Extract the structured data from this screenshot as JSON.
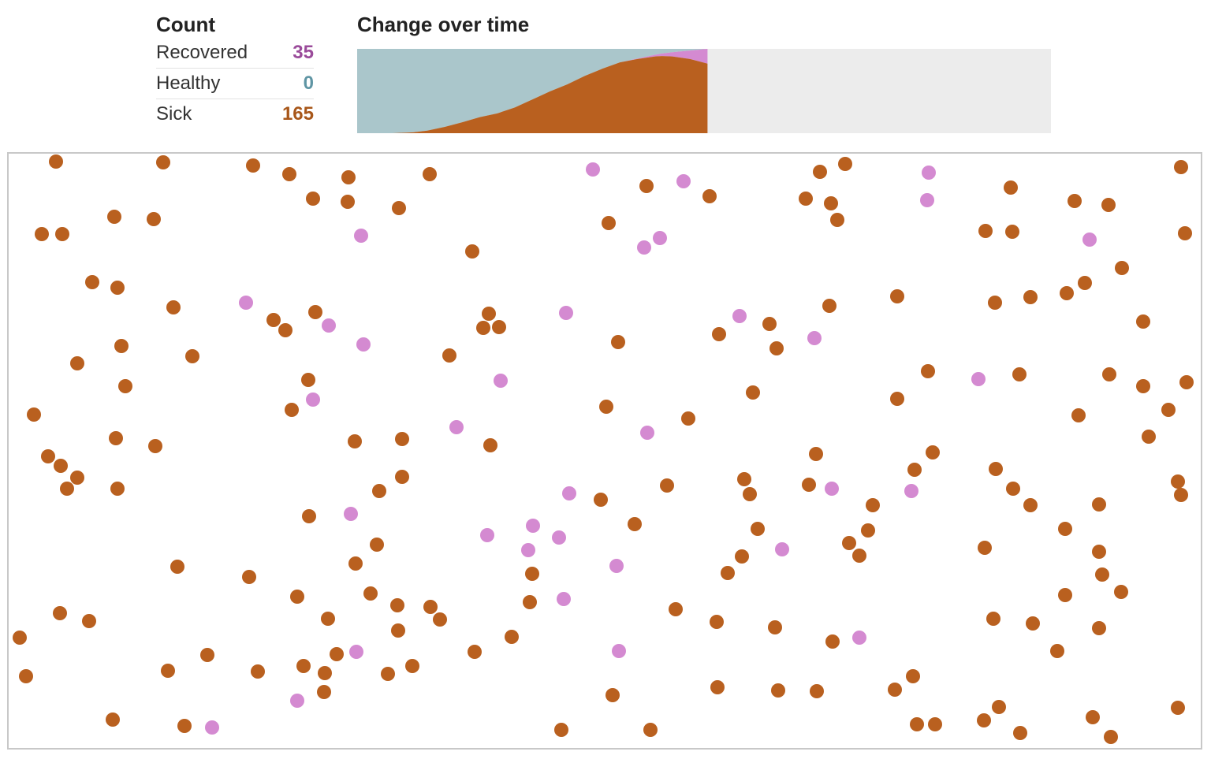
{
  "count_panel": {
    "title": "Count",
    "rows": [
      {
        "label": "Recovered",
        "value": "35",
        "color": "#9a4b9a"
      },
      {
        "label": "Healthy",
        "value": "0",
        "color": "#5f95a4"
      },
      {
        "label": "Sick",
        "value": "165",
        "color": "#a8571a"
      }
    ]
  },
  "change_panel": {
    "title": "Change over time"
  },
  "colors": {
    "sick": "#b9601f",
    "healthy": "#aac6cb",
    "recovered": "#d48ad1",
    "chart_empty": "#ececec",
    "border": "#c8c8c8"
  },
  "chart_data": [
    {
      "type": "area",
      "title": "Change over time",
      "progress_fraction": 0.505,
      "total": 200,
      "stacking": [
        "sick",
        "healthy",
        "recovered"
      ],
      "x": [
        0,
        5,
        10,
        13,
        16,
        20,
        25,
        30,
        35,
        40,
        45,
        50,
        55,
        60,
        65,
        70,
        75,
        80,
        85,
        87,
        90,
        95,
        100
      ],
      "series": [
        {
          "name": "Sick",
          "color": "#b9601f",
          "values": [
            0,
            0,
            0,
            1,
            2,
            6,
            15,
            26,
            38,
            47,
            61,
            80,
            99,
            116,
            136,
            153,
            168,
            176,
            182,
            183,
            182,
            176,
            165
          ]
        },
        {
          "name": "Recovered",
          "color": "#d48ad1",
          "values": [
            0,
            0,
            0,
            0,
            0,
            0,
            0,
            0,
            0,
            0,
            0,
            0,
            0,
            0,
            0,
            0,
            0,
            1,
            4,
            6,
            10,
            20,
            35
          ]
        },
        {
          "name": "Healthy",
          "color": "#aac6cb",
          "values": [
            200,
            200,
            200,
            199,
            198,
            194,
            185,
            174,
            162,
            153,
            139,
            120,
            101,
            84,
            64,
            47,
            32,
            23,
            14,
            11,
            8,
            4,
            0
          ]
        }
      ]
    },
    {
      "type": "scatter",
      "description_of_points": "simulation population",
      "xlim": [
        0,
        1516
      ],
      "ylim": [
        0,
        758
      ],
      "series": [
        {
          "name": "Sick",
          "color": "#b9601f",
          "points": [
            [
              62,
              12
            ],
            [
              198,
              13
            ],
            [
              312,
              17
            ],
            [
              358,
              28
            ],
            [
              433,
              32
            ],
            [
              536,
              28
            ],
            [
              388,
              59
            ],
            [
              432,
              63
            ],
            [
              497,
              71
            ],
            [
              1031,
              25
            ],
            [
              1063,
              15
            ],
            [
              1273,
              45
            ],
            [
              1489,
              19
            ],
            [
              136,
              82
            ],
            [
              186,
              85
            ],
            [
              44,
              104
            ],
            [
              70,
              104
            ],
            [
              811,
              43
            ],
            [
              891,
              56
            ],
            [
              1013,
              59
            ],
            [
              1045,
              65
            ],
            [
              1053,
              86
            ],
            [
              763,
              90
            ],
            [
              1354,
              62
            ],
            [
              1397,
              67
            ],
            [
              590,
              126
            ],
            [
              1241,
              100
            ],
            [
              1275,
              101
            ],
            [
              108,
              165
            ],
            [
              140,
              172
            ],
            [
              211,
              197
            ],
            [
              338,
              213
            ],
            [
              353,
              226
            ],
            [
              391,
              203
            ],
            [
              611,
              205
            ],
            [
              604,
              223
            ],
            [
              624,
              222
            ],
            [
              1043,
              195
            ],
            [
              1129,
              183
            ],
            [
              1253,
              191
            ],
            [
              1298,
              184
            ],
            [
              1344,
              179
            ],
            [
              1367,
              166
            ],
            [
              1414,
              147
            ],
            [
              1494,
              103
            ],
            [
              145,
              246
            ],
            [
              235,
              259
            ],
            [
              89,
              268
            ],
            [
              150,
              297
            ],
            [
              561,
              258
            ],
            [
              775,
              241
            ],
            [
              903,
              231
            ],
            [
              967,
              218
            ],
            [
              976,
              249
            ],
            [
              1441,
              215
            ],
            [
              382,
              289
            ],
            [
              1168,
              278
            ],
            [
              1284,
              282
            ],
            [
              1398,
              282
            ],
            [
              1496,
              292
            ],
            [
              1441,
              297
            ],
            [
              1473,
              327
            ],
            [
              34,
              333
            ],
            [
              361,
              327
            ],
            [
              946,
              305
            ],
            [
              760,
              323
            ],
            [
              864,
              338
            ],
            [
              1129,
              313
            ],
            [
              1359,
              334
            ],
            [
              138,
              363
            ],
            [
              188,
              373
            ],
            [
              441,
              367
            ],
            [
              501,
              364
            ],
            [
              613,
              372
            ],
            [
              1448,
              361
            ],
            [
              52,
              386
            ],
            [
              68,
              398
            ],
            [
              89,
              413
            ],
            [
              76,
              427
            ],
            [
              140,
              427
            ],
            [
              472,
              430
            ],
            [
              501,
              412
            ],
            [
              1026,
              383
            ],
            [
              1174,
              381
            ],
            [
              1151,
              403
            ],
            [
              1254,
              402
            ],
            [
              1276,
              427
            ],
            [
              1298,
              448
            ],
            [
              1385,
              447
            ],
            [
              935,
              415
            ],
            [
              942,
              434
            ],
            [
              1017,
              422
            ],
            [
              1098,
              448
            ],
            [
              1485,
              418
            ],
            [
              1489,
              435
            ],
            [
              837,
              423
            ],
            [
              753,
              441
            ],
            [
              383,
              462
            ],
            [
              796,
              472
            ],
            [
              952,
              478
            ],
            [
              1092,
              480
            ],
            [
              1068,
              496
            ],
            [
              1081,
              512
            ],
            [
              1342,
              478
            ],
            [
              1385,
              507
            ],
            [
              1240,
              502
            ],
            [
              1389,
              536
            ],
            [
              1413,
              558
            ],
            [
              469,
              498
            ],
            [
              442,
              522
            ],
            [
              216,
              526
            ],
            [
              307,
              539
            ],
            [
              914,
              534
            ],
            [
              932,
              513
            ],
            [
              1342,
              562
            ],
            [
              368,
              564
            ],
            [
              461,
              560
            ],
            [
              495,
              575
            ],
            [
              496,
              607
            ],
            [
              537,
              577
            ],
            [
              549,
              593
            ],
            [
              666,
              535
            ],
            [
              663,
              571
            ],
            [
              848,
              580
            ],
            [
              407,
              592
            ],
            [
              1251,
              592
            ],
            [
              1301,
              598
            ],
            [
              1385,
              604
            ],
            [
              1332,
              633
            ],
            [
              67,
              585
            ],
            [
              104,
              595
            ],
            [
              16,
              616
            ],
            [
              640,
              615
            ],
            [
              900,
              596
            ],
            [
              974,
              603
            ],
            [
              1047,
              621
            ],
            [
              254,
              638
            ],
            [
              418,
              637
            ],
            [
              593,
              634
            ],
            [
              24,
              665
            ],
            [
              204,
              658
            ],
            [
              318,
              659
            ],
            [
              376,
              652
            ],
            [
              403,
              661
            ],
            [
              483,
              662
            ],
            [
              514,
              652
            ],
            [
              402,
              685
            ],
            [
              1126,
              682
            ],
            [
              1149,
              665
            ],
            [
              768,
              689
            ],
            [
              901,
              679
            ],
            [
              978,
              683
            ],
            [
              1027,
              684
            ],
            [
              134,
              720
            ],
            [
              225,
              728
            ],
            [
              703,
              733
            ],
            [
              816,
              733
            ],
            [
              1154,
              726
            ],
            [
              1177,
              726
            ],
            [
              1239,
              721
            ],
            [
              1258,
              704
            ],
            [
              1285,
              737
            ],
            [
              1377,
              717
            ],
            [
              1400,
              742
            ],
            [
              1485,
              705
            ]
          ]
        },
        {
          "name": "Recovered",
          "color": "#d48ad1",
          "points": [
            [
              743,
              22
            ],
            [
              858,
              37
            ],
            [
              1169,
              26
            ],
            [
              1167,
              61
            ],
            [
              449,
              106
            ],
            [
              828,
              109
            ],
            [
              808,
              121
            ],
            [
              1373,
              111
            ],
            [
              303,
              191
            ],
            [
              408,
              220
            ],
            [
              452,
              244
            ],
            [
              709,
              204
            ],
            [
              929,
              208
            ],
            [
              1024,
              236
            ],
            [
              626,
              290
            ],
            [
              388,
              314
            ],
            [
              570,
              349
            ],
            [
              812,
              356
            ],
            [
              1232,
              288
            ],
            [
              713,
              433
            ],
            [
              1046,
              427
            ],
            [
              1147,
              430
            ],
            [
              436,
              459
            ],
            [
              667,
              474
            ],
            [
              609,
              486
            ],
            [
              661,
              505
            ],
            [
              700,
              489
            ],
            [
              983,
              504
            ],
            [
              773,
              525
            ],
            [
              706,
              567
            ],
            [
              1081,
              616
            ],
            [
              443,
              634
            ],
            [
              776,
              633
            ],
            [
              368,
              696
            ],
            [
              260,
              730
            ]
          ]
        }
      ]
    }
  ]
}
